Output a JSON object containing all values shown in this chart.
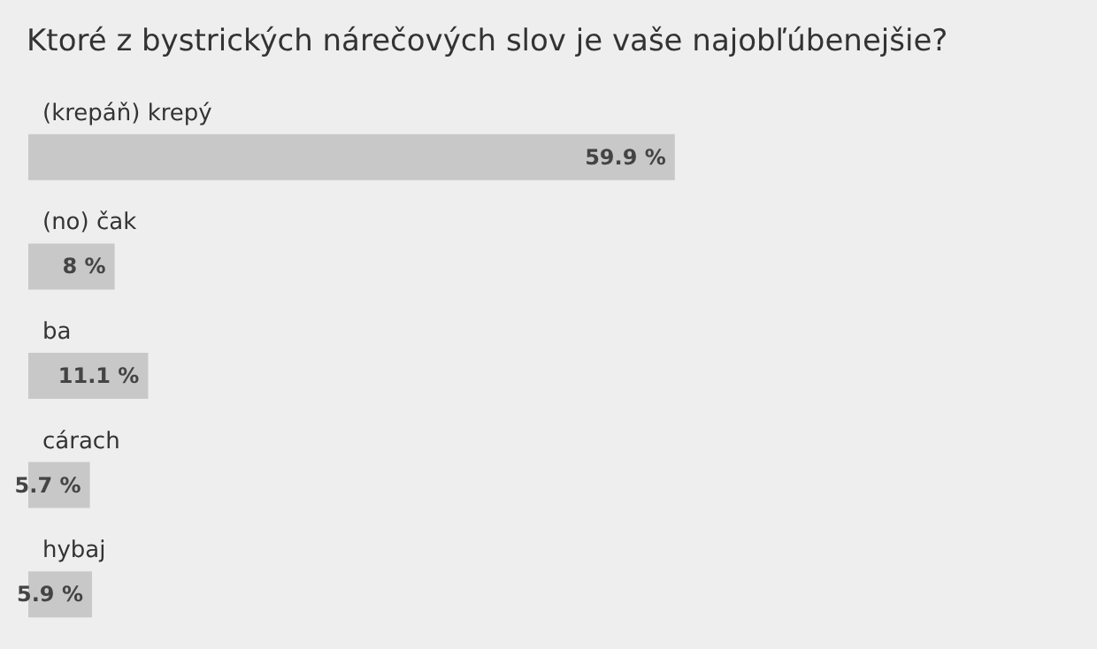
{
  "chart_data": {
    "type": "bar",
    "orientation": "horizontal",
    "title": "Ktoré z bystrických nárečových slov je vaše najobľúbenejšie?",
    "categories": [
      "(krepáň) krepý",
      "(no) čak",
      "ba",
      "cárach",
      "hybaj"
    ],
    "values": [
      59.9,
      8,
      11.1,
      5.7,
      5.9
    ],
    "value_labels": [
      "59.9 %",
      "8 %",
      "11.1 %",
      "5.7 %",
      "5.9 %"
    ],
    "color": "#c8c8c8"
  }
}
